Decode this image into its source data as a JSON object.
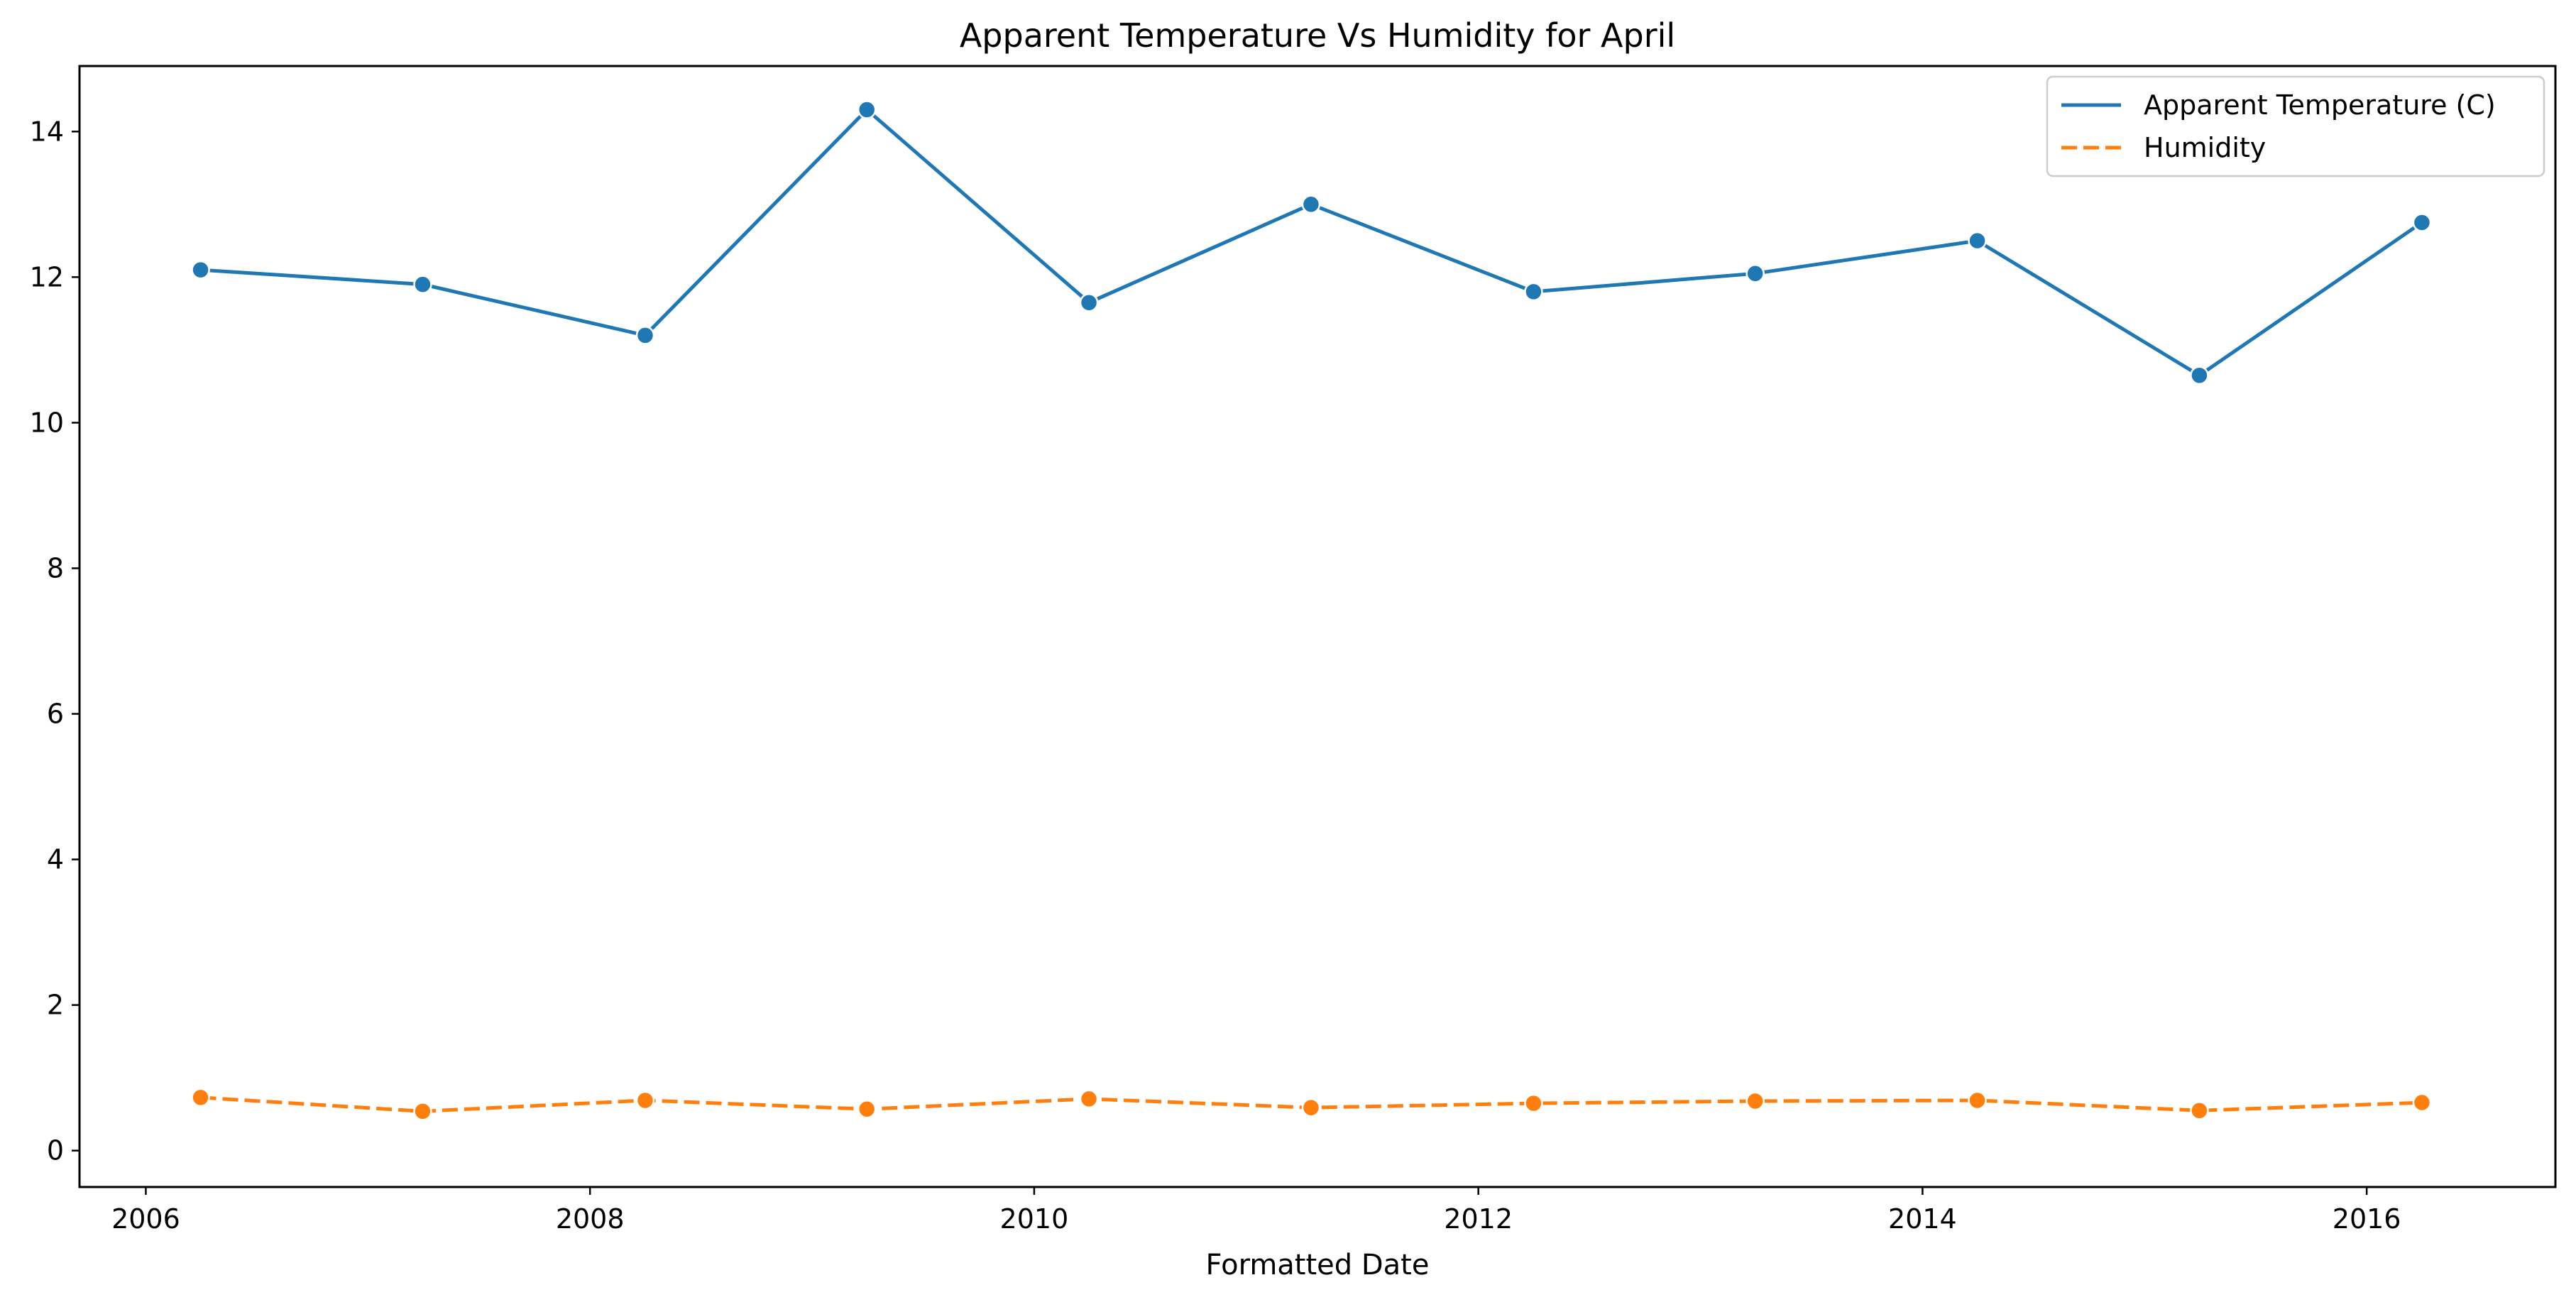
{
  "chart_data": {
    "type": "line",
    "title": "Apparent Temperature Vs Humidity for April",
    "xlabel": "Formatted Date",
    "ylabel": "",
    "x_axis_type": "date",
    "xlim": [
      "2005-09-14",
      "2016-11-07"
    ],
    "ylim": [
      -0.5,
      14.9
    ],
    "x_ticks": [
      {
        "value": "2006-01-01",
        "label": "2006"
      },
      {
        "value": "2008-01-01",
        "label": "2008"
      },
      {
        "value": "2010-01-01",
        "label": "2010"
      },
      {
        "value": "2012-01-01",
        "label": "2012"
      },
      {
        "value": "2014-01-01",
        "label": "2014"
      },
      {
        "value": "2016-01-01",
        "label": "2016"
      }
    ],
    "y_ticks": [
      {
        "value": 0,
        "label": "0"
      },
      {
        "value": 2,
        "label": "2"
      },
      {
        "value": 4,
        "label": "4"
      },
      {
        "value": 6,
        "label": "6"
      },
      {
        "value": 8,
        "label": "8"
      },
      {
        "value": 10,
        "label": "10"
      },
      {
        "value": 12,
        "label": "12"
      },
      {
        "value": 14,
        "label": "14"
      }
    ],
    "x": [
      "2006-04-01",
      "2007-04-01",
      "2008-04-01",
      "2009-04-01",
      "2010-04-01",
      "2011-04-01",
      "2012-04-01",
      "2013-04-01",
      "2014-04-01",
      "2015-04-01",
      "2016-04-01"
    ],
    "series": [
      {
        "name": "Apparent Temperature (C)",
        "color": "#1f77b4",
        "line_style": "solid",
        "marker": "circle",
        "values": [
          12.1,
          11.9,
          11.2,
          14.3,
          11.65,
          13.0,
          11.8,
          12.05,
          12.5,
          10.65,
          12.75
        ]
      },
      {
        "name": "Humidity",
        "color": "#ff7f0e",
        "line_style": "dashed",
        "marker": "circle",
        "values": [
          0.73,
          0.54,
          0.69,
          0.57,
          0.71,
          0.59,
          0.65,
          0.68,
          0.69,
          0.55,
          0.66
        ]
      }
    ],
    "grid": false,
    "legend": {
      "position": "top-right"
    }
  }
}
